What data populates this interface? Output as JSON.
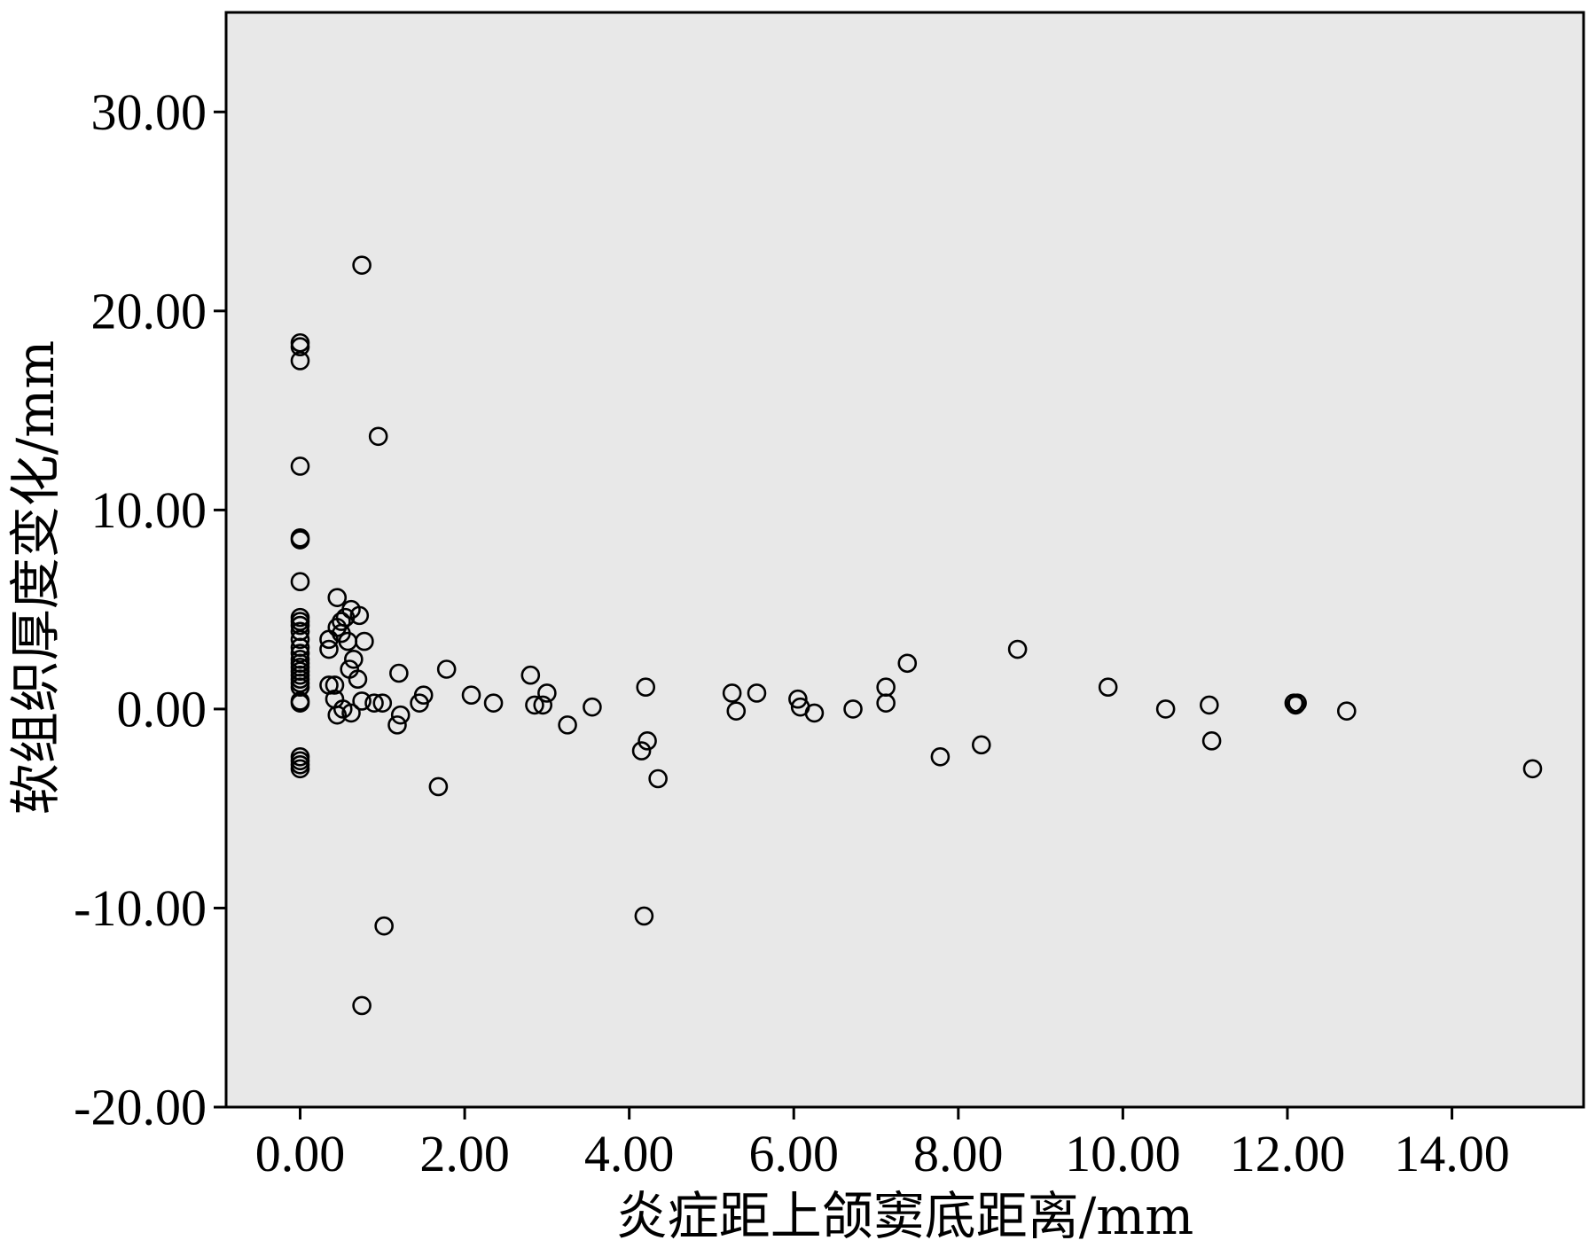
{
  "chart_data": {
    "type": "scatter",
    "title": "",
    "xlabel": "炎症距上颌窦底距离/mm",
    "ylabel": "软组织厚度变化/mm",
    "xlim": [
      -0.9,
      15.6
    ],
    "ylim": [
      -20,
      35
    ],
    "x_ticks": [
      0,
      2,
      4,
      6,
      8,
      10,
      12,
      14
    ],
    "y_ticks": [
      -20,
      -10,
      0,
      10,
      20,
      30
    ],
    "x_tick_labels": [
      "0.00",
      "2.00",
      "4.00",
      "6.00",
      "8.00",
      "10.00",
      "12.00",
      "14.00"
    ],
    "y_tick_labels": [
      "-20.00",
      "-10.00",
      "0.00",
      "10.00",
      "20.00",
      "30.00"
    ],
    "grid": false,
    "plot_background": "#e8e8e8",
    "marker_color": "#000000",
    "series": [
      {
        "points": [
          [
            0.0,
            18.4
          ],
          [
            0.0,
            18.2
          ],
          [
            0.0,
            17.5
          ],
          [
            0.0,
            12.2
          ],
          [
            0.0,
            8.6
          ],
          [
            0.0,
            8.5
          ],
          [
            0.0,
            6.4
          ],
          [
            0.0,
            4.6
          ],
          [
            0.0,
            4.4
          ],
          [
            0.0,
            4.2
          ],
          [
            0.0,
            3.9
          ],
          [
            0.0,
            3.5
          ],
          [
            0.0,
            3.1
          ],
          [
            0.0,
            2.8
          ],
          [
            0.0,
            2.5
          ],
          [
            0.0,
            2.3
          ],
          [
            0.0,
            2.1
          ],
          [
            0.0,
            1.9
          ],
          [
            0.0,
            1.7
          ],
          [
            0.0,
            1.5
          ],
          [
            0.0,
            1.3
          ],
          [
            0.0,
            1.1
          ],
          [
            0.0,
            0.4
          ],
          [
            0.0,
            0.3
          ],
          [
            0.0,
            -2.4
          ],
          [
            0.0,
            -2.6
          ],
          [
            0.0,
            -2.8
          ],
          [
            0.0,
            -3.0
          ],
          [
            0.75,
            22.3
          ],
          [
            0.95,
            13.7
          ],
          [
            1.02,
            -10.9
          ],
          [
            0.75,
            -14.9
          ],
          [
            0.45,
            5.6
          ],
          [
            0.62,
            5.0
          ],
          [
            0.72,
            4.7
          ],
          [
            0.5,
            4.4
          ],
          [
            0.55,
            4.6
          ],
          [
            0.45,
            4.1
          ],
          [
            0.5,
            3.8
          ],
          [
            0.35,
            3.5
          ],
          [
            0.35,
            3.0
          ],
          [
            0.58,
            3.4
          ],
          [
            0.78,
            3.4
          ],
          [
            0.65,
            2.5
          ],
          [
            0.6,
            2.0
          ],
          [
            0.7,
            1.5
          ],
          [
            0.35,
            1.2
          ],
          [
            0.42,
            1.2
          ],
          [
            0.42,
            0.5
          ],
          [
            0.75,
            0.4
          ],
          [
            0.45,
            -0.3
          ],
          [
            0.52,
            0.0
          ],
          [
            0.62,
            -0.2
          ],
          [
            0.9,
            0.3
          ],
          [
            1.0,
            0.3
          ],
          [
            1.2,
            1.8
          ],
          [
            1.5,
            0.7
          ],
          [
            1.45,
            0.3
          ],
          [
            1.22,
            -0.3
          ],
          [
            1.18,
            -0.8
          ],
          [
            1.78,
            2.0
          ],
          [
            1.68,
            -3.9
          ],
          [
            2.08,
            0.7
          ],
          [
            2.35,
            0.3
          ],
          [
            2.8,
            1.7
          ],
          [
            2.85,
            0.2
          ],
          [
            2.95,
            0.2
          ],
          [
            3.0,
            0.8
          ],
          [
            3.25,
            -0.8
          ],
          [
            3.55,
            0.1
          ],
          [
            4.2,
            1.1
          ],
          [
            4.22,
            -1.6
          ],
          [
            4.15,
            -2.1
          ],
          [
            4.35,
            -3.5
          ],
          [
            4.18,
            -10.4
          ],
          [
            5.25,
            0.8
          ],
          [
            5.3,
            -0.1
          ],
          [
            5.55,
            0.8
          ],
          [
            6.05,
            0.5
          ],
          [
            6.08,
            0.1
          ],
          [
            6.25,
            -0.2
          ],
          [
            6.72,
            0.0
          ],
          [
            7.12,
            1.1
          ],
          [
            7.12,
            0.3
          ],
          [
            7.38,
            2.3
          ],
          [
            7.78,
            -2.4
          ],
          [
            8.28,
            -1.8
          ],
          [
            8.72,
            3.0
          ],
          [
            9.82,
            1.1
          ],
          [
            10.52,
            0.0
          ],
          [
            11.05,
            0.2
          ],
          [
            11.08,
            -1.6
          ],
          [
            12.08,
            0.3
          ],
          [
            12.1,
            0.2
          ],
          [
            12.12,
            0.3
          ],
          [
            12.72,
            -0.1
          ],
          [
            14.98,
            -3.0
          ]
        ]
      }
    ]
  }
}
